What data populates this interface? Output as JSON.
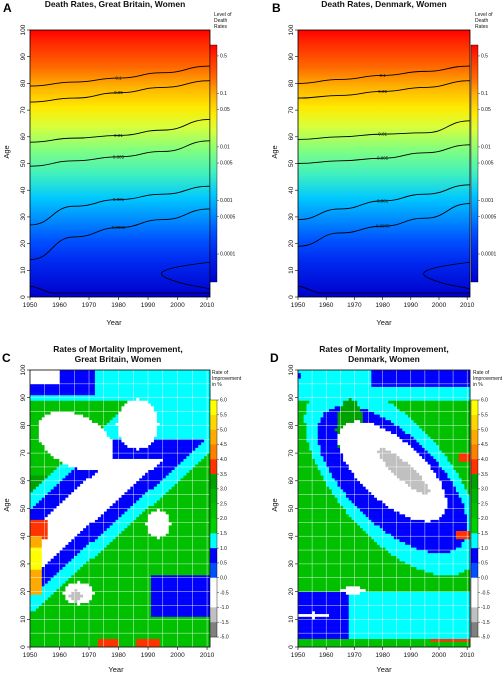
{
  "chart_data": [
    {
      "type": "heatmap",
      "panel_label": "A",
      "title": "Death Rates, Great Britain, Women",
      "xlabel": "Year",
      "ylabel": "Age",
      "xlim": [
        1950,
        2011
      ],
      "ylim": [
        0,
        100
      ],
      "x_ticks": [
        "1950",
        "1960",
        "1970",
        "1980",
        "1990",
        "2000",
        "2010"
      ],
      "y_ticks": [
        "0",
        "10",
        "20",
        "30",
        "40",
        "50",
        "60",
        "70",
        "80",
        "90",
        "100"
      ],
      "legend_title": [
        "Level of",
        "Death",
        "Rates"
      ],
      "legend_ticks": [
        "0.5",
        "0.1",
        "0.05",
        "0.01",
        "0.005",
        "0.001",
        "0.0005",
        "0.0001"
      ],
      "legend_range": [
        3e-05,
        0.8
      ],
      "scale": "log",
      "contours": [
        {
          "level": "0.1",
          "ages": [
            79,
            80.5,
            82,
            84,
            86.5
          ]
        },
        {
          "level": "0.05",
          "ages": [
            73,
            74.5,
            76.5,
            78.5,
            81
          ]
        },
        {
          "level": "0.01",
          "ages": [
            58,
            59.5,
            60.5,
            62.5,
            66.5
          ]
        },
        {
          "level": "0.005",
          "ages": [
            49,
            51,
            52.5,
            54.5,
            58.5
          ]
        },
        {
          "level": "0.001",
          "ages": [
            27,
            34,
            36.5,
            38.5,
            41.5
          ]
        },
        {
          "level": "0.0005",
          "ages": [
            14,
            22.5,
            26,
            29,
            33
          ]
        }
      ]
    },
    {
      "type": "heatmap",
      "panel_label": "B",
      "title": "Death Rates, Denmark, Women",
      "xlabel": "Year",
      "ylabel": "Age",
      "xlim": [
        1950,
        2011
      ],
      "ylim": [
        0,
        100
      ],
      "x_ticks": [
        "1950",
        "1960",
        "1970",
        "1980",
        "1990",
        "2000",
        "2010"
      ],
      "y_ticks": [
        "0",
        "10",
        "20",
        "30",
        "40",
        "50",
        "60",
        "70",
        "80",
        "90",
        "100"
      ],
      "legend_title": [
        "Level of",
        "Death",
        "Rates"
      ],
      "legend_ticks": [
        "0.5",
        "0.1",
        "0.05",
        "0.01",
        "0.005",
        "0.001",
        "0.0005",
        "0.0001"
      ],
      "legend_range": [
        3e-05,
        0.8
      ],
      "scale": "log",
      "contours": [
        {
          "level": "0.1",
          "ages": [
            80,
            81.5,
            83,
            84.5,
            86.5
          ]
        },
        {
          "level": "0.05",
          "ages": [
            74.5,
            75.5,
            77,
            78.5,
            81
          ]
        },
        {
          "level": "0.01",
          "ages": [
            59,
            60,
            61,
            61.5,
            66
          ]
        },
        {
          "level": "0.005",
          "ages": [
            50,
            51,
            52,
            54,
            57
          ]
        },
        {
          "level": "0.001",
          "ages": [
            29,
            33,
            36,
            38.5,
            42
          ]
        },
        {
          "level": "0.0005",
          "ages": [
            19,
            24,
            26.5,
            29.5,
            35
          ]
        }
      ]
    },
    {
      "type": "heatmap",
      "panel_label": "C",
      "title": [
        "Rates of Mortality Improvement,",
        "Great Britain, Women"
      ],
      "xlabel": "Year",
      "ylabel": "Age",
      "xlim": [
        1950,
        2011
      ],
      "ylim": [
        0,
        100
      ],
      "x_ticks": [
        "1950",
        "1960",
        "1970",
        "1980",
        "1990",
        "2000",
        "2010"
      ],
      "y_ticks": [
        "0",
        "10",
        "20",
        "30",
        "40",
        "50",
        "60",
        "70",
        "80",
        "90",
        "100"
      ],
      "legend_title": [
        "Rate of",
        "Improvement",
        "in %"
      ],
      "legend_ticks": [
        "6.0",
        "5.5",
        "5.0",
        "4.5",
        "4.0",
        "3.5",
        "3.0",
        "2.5",
        "2.0",
        "1.5",
        "1.0",
        "0.5",
        "0.0",
        "-0.5",
        "-1.0",
        "-1.5",
        "-5.0"
      ],
      "legend_colors": [
        "#ffff00",
        "#ffd700",
        "#ffaa00",
        "#ff7f00",
        "#ff3300",
        "#00a000",
        "#00b400",
        "#00c000",
        "#00d000",
        "#00ffff",
        "#0000ff",
        "#0050ff",
        "#ffffff",
        "#ffffff",
        "#c0c0c0",
        "#808080",
        "#000000"
      ]
    },
    {
      "type": "heatmap",
      "panel_label": "D",
      "title": [
        "Rates of Mortality Improvement,",
        "Denmark, Women"
      ],
      "xlabel": "Year",
      "ylabel": "Age",
      "xlim": [
        1950,
        2011
      ],
      "ylim": [
        0,
        100
      ],
      "x_ticks": [
        "1950",
        "1960",
        "1970",
        "1980",
        "1990",
        "2000",
        "2010"
      ],
      "y_ticks": [
        "0",
        "10",
        "20",
        "30",
        "40",
        "50",
        "60",
        "70",
        "80",
        "90",
        "100"
      ],
      "legend_title": [
        "Rate of",
        "Improvement",
        "in %"
      ],
      "legend_ticks": [
        "6.0",
        "5.5",
        "5.0",
        "4.5",
        "4.0",
        "3.5",
        "3.0",
        "2.5",
        "2.0",
        "1.5",
        "1.0",
        "0.5",
        "0.0",
        "-0.5",
        "-1.0",
        "-1.5",
        "-5.0"
      ],
      "legend_colors": [
        "#ffff00",
        "#ffd700",
        "#ffaa00",
        "#ff7f00",
        "#ff3300",
        "#00a000",
        "#00b400",
        "#00c000",
        "#00d000",
        "#00ffff",
        "#0000ff",
        "#0050ff",
        "#ffffff",
        "#ffffff",
        "#c0c0c0",
        "#808080",
        "#000000"
      ]
    }
  ]
}
